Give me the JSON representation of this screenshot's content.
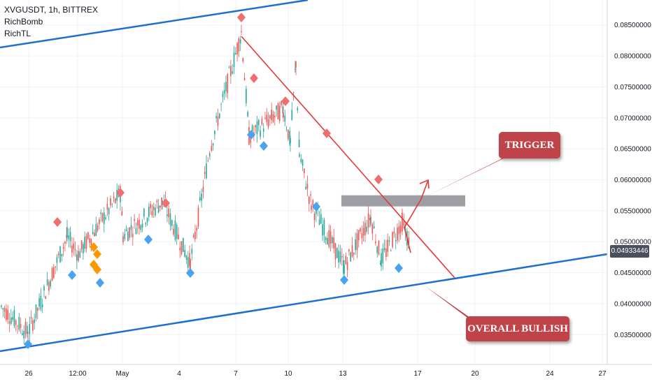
{
  "header": {
    "symbol_line": "XVGUSDT, 1h, BITTREX",
    "indicators": [
      "RichBomb",
      "RichTL"
    ]
  },
  "price_axis": {
    "labels": [
      "0.08500000",
      "0.08000000",
      "0.07500000",
      "0.07000000",
      "0.06500000",
      "0.06000000",
      "0.05500000",
      "0.05000000",
      "0.04500000",
      "0.04000000",
      "0.03500000"
    ],
    "current_price": "0.04933446"
  },
  "time_axis": {
    "labels": [
      "26",
      "12:00",
      "May",
      "4",
      "7",
      "10",
      "13",
      "17",
      "20",
      "24",
      "27"
    ]
  },
  "annotations": {
    "trigger": "TRIGGER",
    "overall": "OVERALL BULLISH"
  },
  "colors": {
    "up": "#26a69a",
    "down": "#ef5350",
    "channel": "#1e6fce",
    "trendline": "#e53935",
    "marker_top": "#ef6f6f",
    "marker_bottom": "#4aa3f0",
    "marker_orange": "#ff9800",
    "zone": "#9e9fa5",
    "callout": "#c0434a"
  },
  "chart_data": {
    "type": "candlestick",
    "symbol": "XVGUSDT",
    "interval": "1h",
    "exchange": "BITTREX",
    "y_range": [
      0.033,
      0.087
    ],
    "x_ticks": [
      "26",
      "12:00",
      "May",
      "4",
      "7",
      "10",
      "13",
      "17",
      "20",
      "24",
      "27"
    ],
    "price_path": [
      [
        "26",
        0.0395
      ],
      [
        "26",
        0.0352
      ],
      [
        "12:00",
        0.0508
      ],
      [
        "12:00",
        0.048
      ],
      [
        "May",
        0.0578
      ],
      [
        "May",
        0.051
      ],
      [
        "4",
        0.0565
      ],
      [
        "4",
        0.0465
      ],
      [
        "7",
        0.065
      ],
      [
        "7",
        0.0838
      ],
      [
        "7",
        0.067
      ],
      [
        "10",
        0.0715
      ],
      [
        "10",
        0.066
      ],
      [
        "10",
        0.079
      ],
      [
        "10",
        0.064
      ],
      [
        "13",
        0.056
      ],
      [
        "13",
        0.046
      ],
      [
        "13",
        0.054
      ],
      [
        "17",
        0.047
      ],
      [
        "17",
        0.0532
      ],
      [
        "17",
        0.0493
      ]
    ],
    "current_price": 0.04933446,
    "resistance_zone": [
      0.0557,
      0.0575
    ],
    "projection_target": 0.06,
    "channel_lower": [
      [
        "26",
        0.0348
      ],
      [
        "27",
        0.049
      ]
    ],
    "channel_upper_start": [
      "26",
      0.0798
    ]
  }
}
